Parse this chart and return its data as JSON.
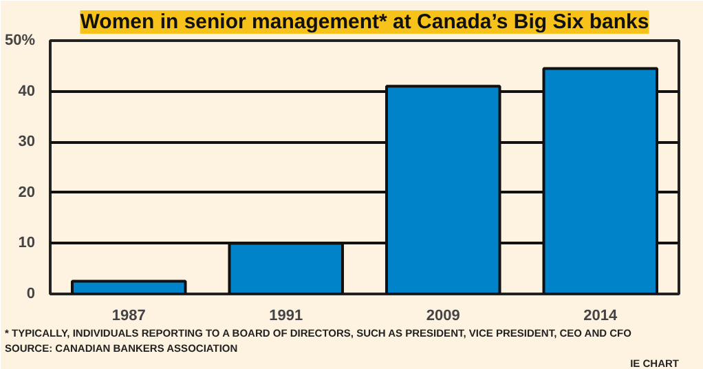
{
  "chart_data": {
    "type": "bar",
    "title": "Women in senior management* at Canada’s Big Six banks",
    "categories": [
      "1987",
      "1991",
      "2009",
      "2014"
    ],
    "values": [
      2.5,
      10,
      41,
      44.5
    ],
    "color": "#0083c9",
    "ylim": [
      0,
      50
    ],
    "yticks": [
      0,
      10,
      20,
      30,
      40,
      {
        "value": 50,
        "label": "50%"
      }
    ],
    "grid": "y",
    "annotations": [
      "* TYPICALLY, INDIVIDUALS REPORTING TO A BOARD OF DIRECTORS, SUCH AS PRESIDENT, VICE PRESIDENT, CEO AND CFO",
      "SOURCE: CANADIAN BANKERS ASSOCIATION",
      "IE CHART"
    ]
  }
}
